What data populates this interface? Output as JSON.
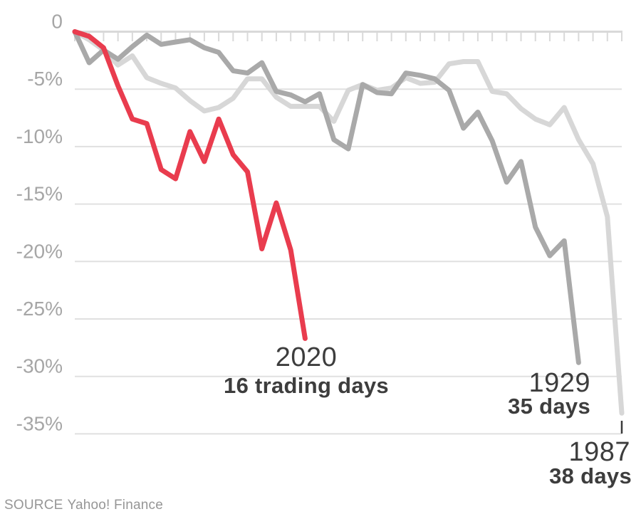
{
  "chart_data": {
    "type": "line",
    "x_unit": "trading days",
    "ylim": [
      -35,
      0
    ],
    "xlim_days": [
      0,
      38
    ],
    "grid": true,
    "legend_position": "inline-annotations",
    "y_axis": {
      "ticks": [
        {
          "value": 0,
          "label": "0"
        },
        {
          "value": -5,
          "label": "-5%"
        },
        {
          "value": -10,
          "label": "-10%"
        },
        {
          "value": -15,
          "label": "-15%"
        },
        {
          "value": -20,
          "label": "-20%"
        },
        {
          "value": -25,
          "label": "-25%"
        },
        {
          "value": -30,
          "label": "-30%"
        },
        {
          "value": -35,
          "label": "-35%"
        }
      ]
    },
    "x_axis": {
      "tick_count": 39,
      "position": "top"
    },
    "series": [
      {
        "name": "1987",
        "color": "#d7d7d7",
        "values": [
          0,
          -0.7,
          -1.6,
          -2.9,
          -2.1,
          -4.0,
          -4.5,
          -4.9,
          -6.0,
          -6.9,
          -6.6,
          -5.8,
          -4.1,
          -4.1,
          -5.7,
          -6.5,
          -6.5,
          -6.5,
          -7.8,
          -5.1,
          -4.6,
          -5.1,
          -4.9,
          -4.0,
          -4.5,
          -4.4,
          -2.8,
          -2.6,
          -2.6,
          -5.2,
          -5.4,
          -6.7,
          -7.6,
          -8.1,
          -6.6,
          -9.4,
          -11.5,
          -16.1,
          -33.2
        ]
      },
      {
        "name": "1929",
        "color": "#a9a9a9",
        "values": [
          0,
          -2.7,
          -1.6,
          -2.4,
          -1.3,
          -0.3,
          -1.1,
          -0.9,
          -0.7,
          -1.4,
          -1.8,
          -3.4,
          -3.6,
          -2.7,
          -5.2,
          -5.5,
          -6.1,
          -5.4,
          -9.4,
          -10.2,
          -4.6,
          -5.3,
          -5.4,
          -3.6,
          -3.8,
          -4.1,
          -5.1,
          -8.4,
          -7.0,
          -9.5,
          -13.1,
          -11.3,
          -17.0,
          -19.5,
          -18.2,
          -28.8
        ]
      },
      {
        "name": "2020",
        "color": "#e93c4e",
        "values": [
          0,
          -0.4,
          -1.4,
          -4.7,
          -7.6,
          -8.0,
          -12.0,
          -12.8,
          -8.7,
          -11.3,
          -7.6,
          -10.7,
          -12.2,
          -18.9,
          -14.9,
          -19.0,
          -26.7
        ]
      }
    ],
    "annotations": {
      "s2020": {
        "year": "2020",
        "days": "16 trading days"
      },
      "s1929": {
        "year": "1929",
        "days": "35 days"
      },
      "s1987": {
        "year": "1987",
        "days": "38 days"
      }
    }
  },
  "source": {
    "label": "SOURCE",
    "value": "Yahoo! Finance"
  },
  "colors": {
    "grid": "#e0e0e0",
    "axis": "#d9d9d9",
    "axis_label": "#a6a6a6",
    "annotation_text": "#3d3d3d",
    "pointer_tick": "#3a3a3a",
    "background": "#ffffff"
  }
}
